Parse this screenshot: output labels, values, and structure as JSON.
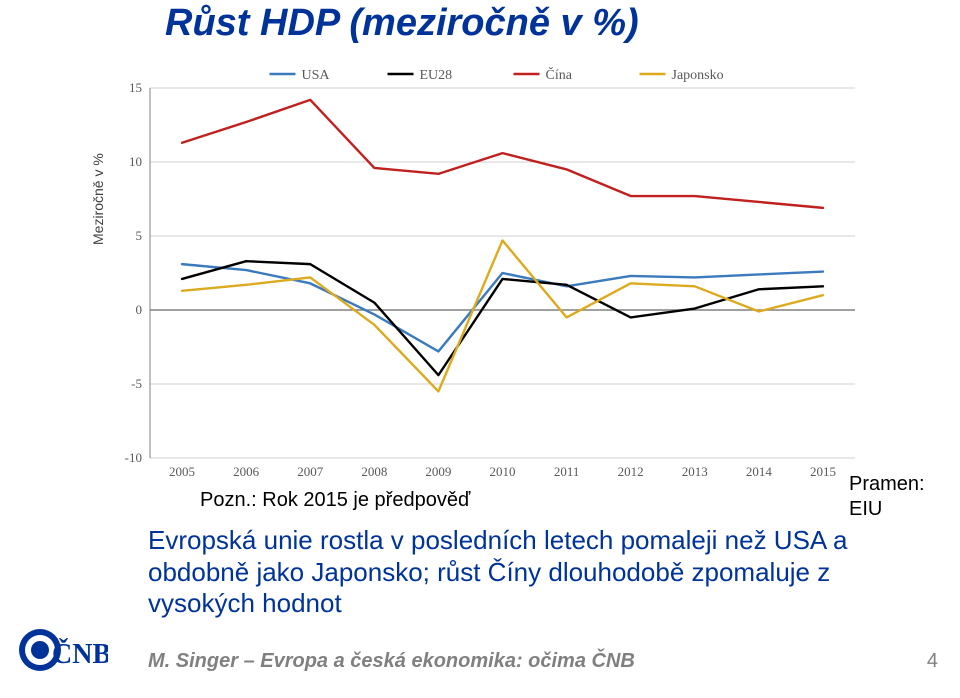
{
  "title": "Růst HDP (meziročně v %)",
  "note": "Pozn.: Rok 2015 je předpověď",
  "source_label": "Pramen:",
  "source_value": "EIU",
  "body_text": "Evropská unie rostla v posledních letech pomaleji než USA a obdobně jako Japonsko; růst Číny dlouhodobě zpomaluje z vysokých hodnot",
  "footer": "M. Singer – Evropa a česká ekonomika: očima ČNB",
  "page_number": "4",
  "chart": {
    "type": "line",
    "ylabel": "Meziročně v %",
    "ylim": [
      -10,
      15
    ],
    "yticks": [
      -10,
      -5,
      0,
      5,
      10,
      15
    ],
    "xticks": [
      "2005",
      "2006",
      "2007",
      "2008",
      "2009",
      "2010",
      "2011",
      "2012",
      "2013",
      "2014",
      "2015"
    ],
    "grid_color": "#d0d0d0",
    "axis_color": "#808080",
    "text_color": "#595959",
    "tick_fontsize": 13,
    "legend_fontsize": 14,
    "line_width": 2.4,
    "background_color": "#ffffff",
    "plot_bg": "#ffffff",
    "series": [
      {
        "name": "USA",
        "color": "#3a7abd",
        "values": [
          3.1,
          2.7,
          1.8,
          -0.3,
          -2.8,
          2.5,
          1.6,
          2.3,
          2.2,
          2.4,
          2.6
        ]
      },
      {
        "name": "EU28",
        "color": "#000000",
        "values": [
          2.1,
          3.3,
          3.1,
          0.5,
          -4.4,
          2.1,
          1.7,
          -0.5,
          0.1,
          1.4,
          1.6
        ]
      },
      {
        "name": "Čína",
        "color": "#c0211f",
        "values": [
          11.3,
          12.7,
          14.2,
          9.6,
          9.2,
          10.6,
          9.5,
          7.7,
          7.7,
          7.3,
          6.9
        ]
      },
      {
        "name": "Japonsko",
        "color": "#dcaa1e",
        "values": [
          1.3,
          1.7,
          2.2,
          -1.0,
          -5.5,
          4.7,
          -0.5,
          1.8,
          1.6,
          -0.1,
          1.0
        ]
      }
    ],
    "legend_order": [
      "USA",
      "EU28",
      "Čína",
      "Japonsko"
    ]
  },
  "logo": {
    "text": "ČNB",
    "ring_outer": "#003399",
    "ring_inner": "#ffffff"
  }
}
